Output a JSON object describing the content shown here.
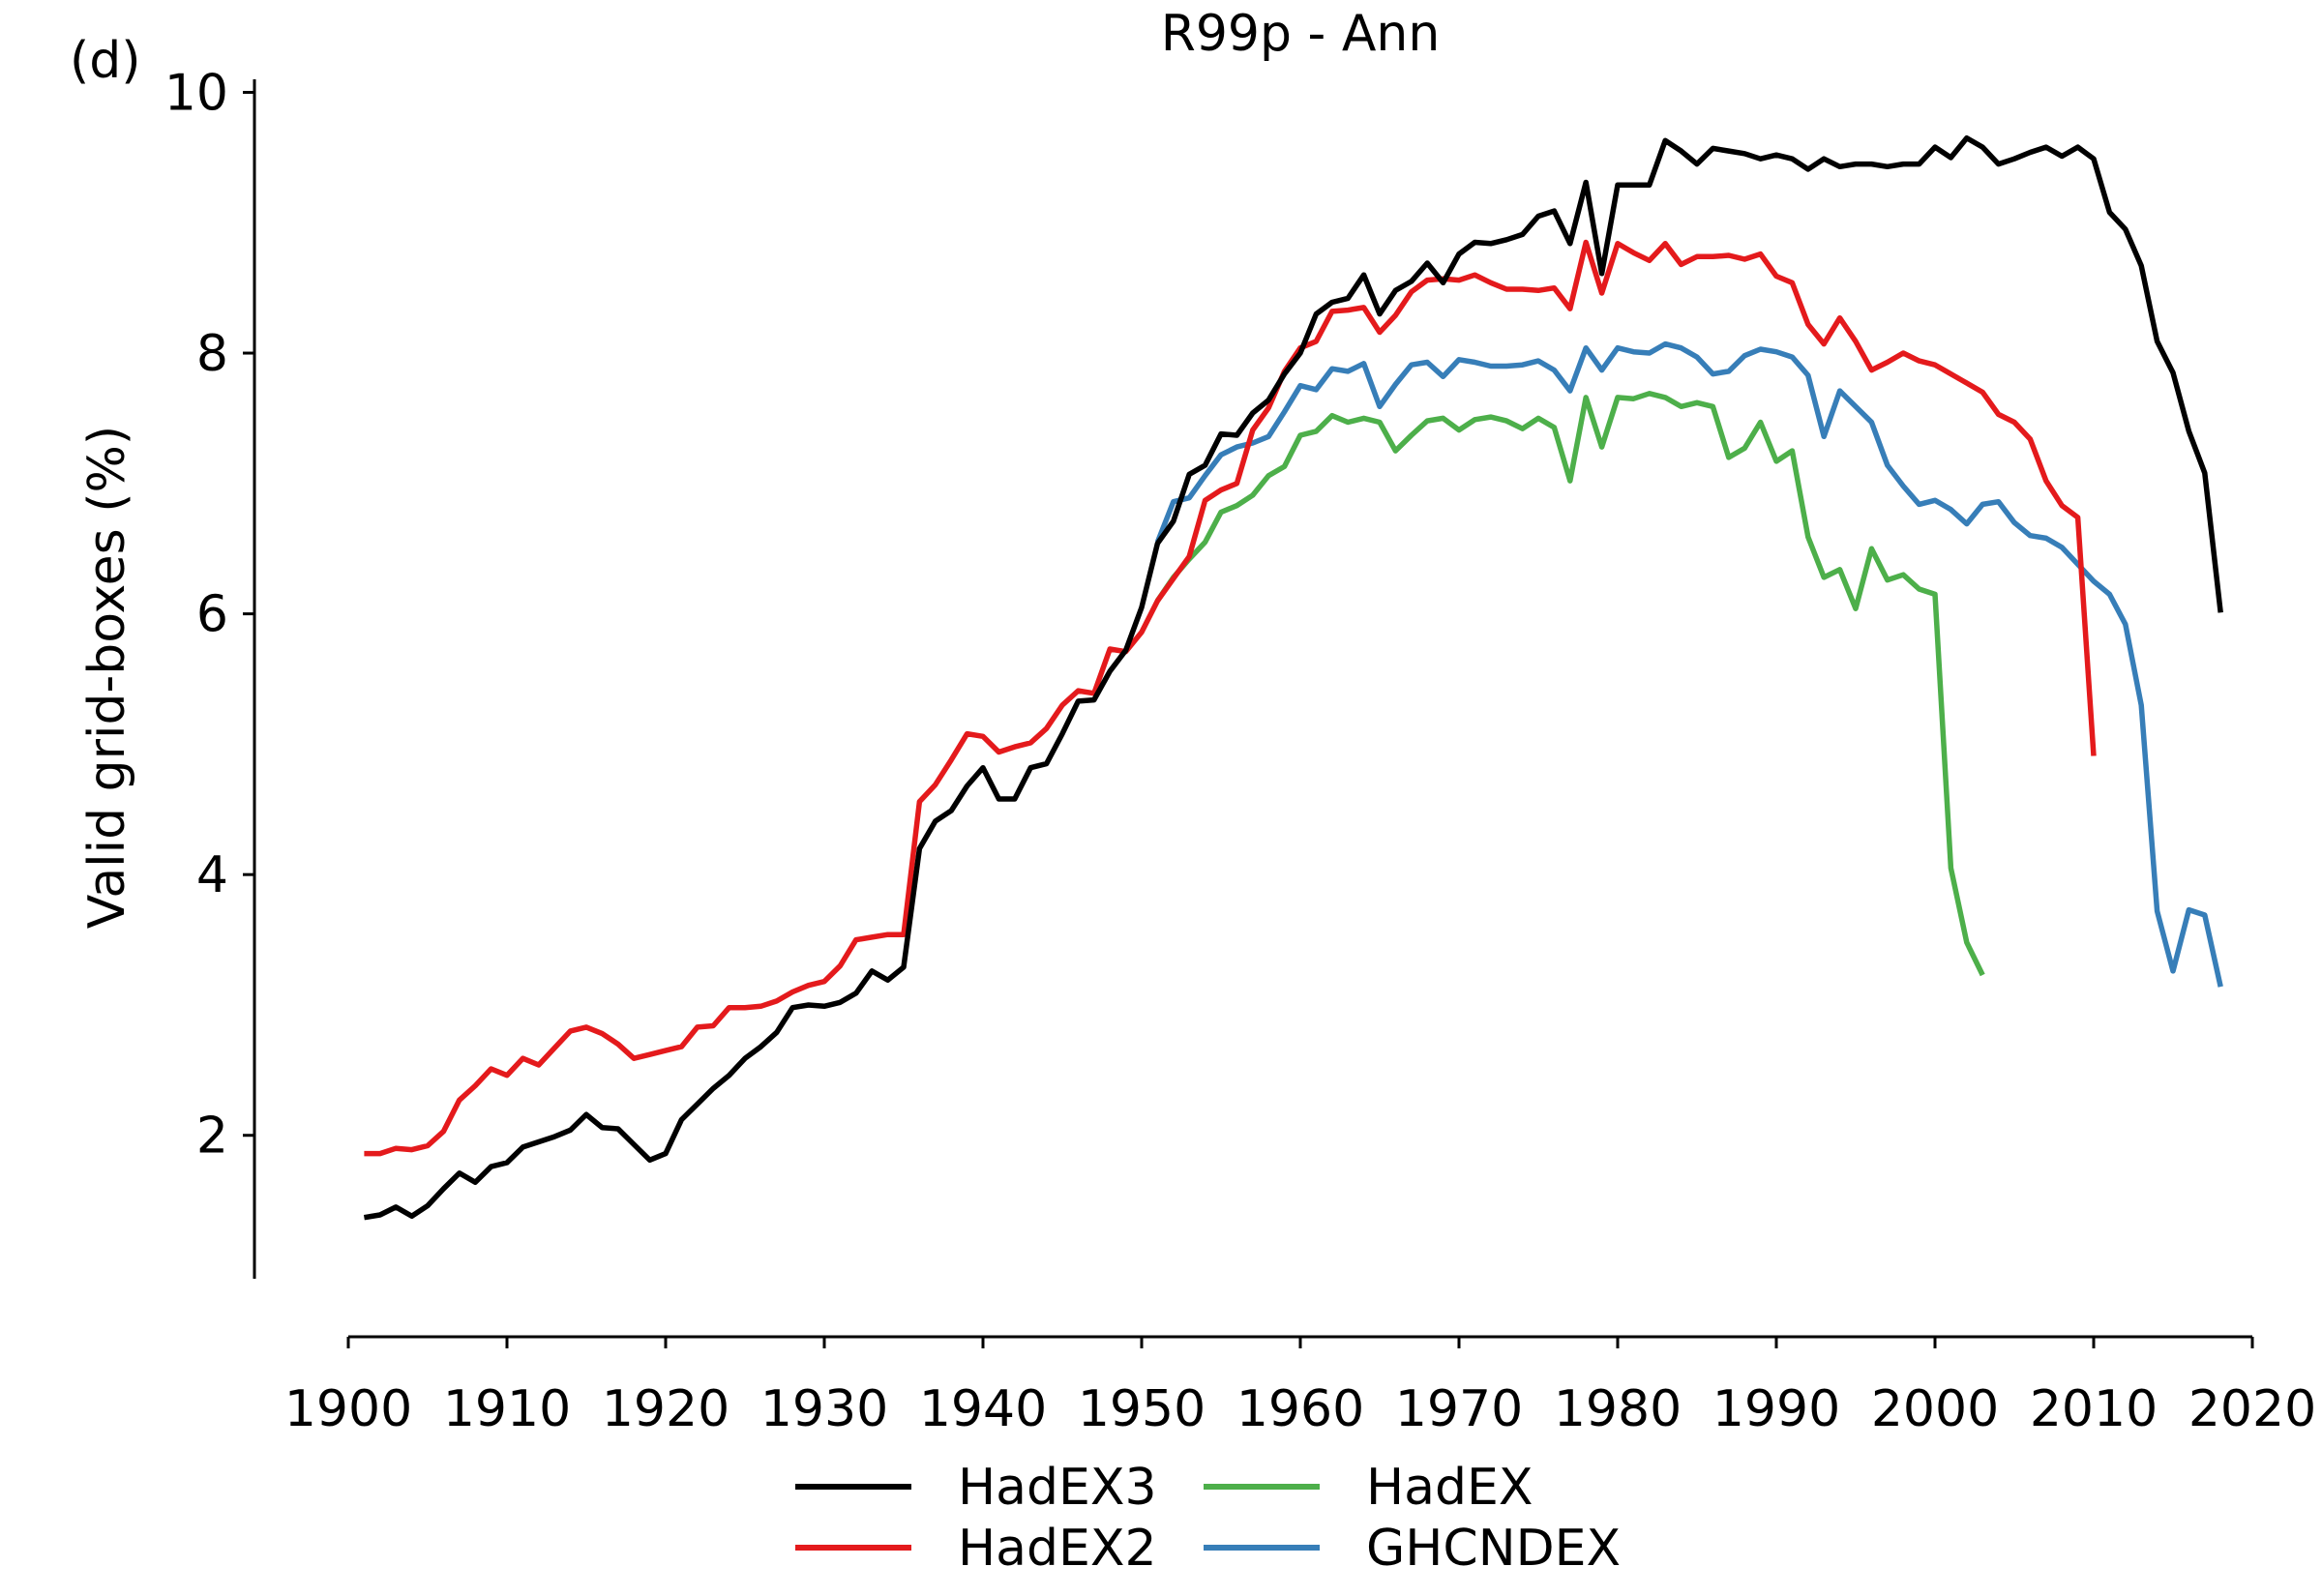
{
  "panel_label": "(d)",
  "chart_data": {
    "type": "line",
    "title": "R99p - Ann",
    "xlabel": "",
    "ylabel": "Valid grid-boxes (%)",
    "xlim": [
      1900,
      2020
    ],
    "ylim": [
      0.9,
      10.1
    ],
    "xticks": [
      1900,
      1910,
      1920,
      1930,
      1940,
      1950,
      1960,
      1970,
      1980,
      1990,
      2000,
      2010,
      2020
    ],
    "yticks": [
      2,
      4,
      6,
      8,
      10
    ],
    "grid": false,
    "legend_position": "bottom-center",
    "series": [
      {
        "name": "HadEX3",
        "color": "#000000",
        "x": [
          1901,
          1902,
          1903,
          1904,
          1905,
          1906,
          1907,
          1908,
          1909,
          1910,
          1911,
          1912,
          1913,
          1914,
          1915,
          1916,
          1917,
          1918,
          1919,
          1920,
          1921,
          1922,
          1923,
          1924,
          1925,
          1926,
          1927,
          1928,
          1929,
          1930,
          1931,
          1932,
          1933,
          1934,
          1935,
          1936,
          1937,
          1938,
          1939,
          1940,
          1941,
          1942,
          1943,
          1944,
          1945,
          1946,
          1947,
          1948,
          1949,
          1950,
          1951,
          1952,
          1953,
          1954,
          1955,
          1956,
          1957,
          1958,
          1959,
          1960,
          1961,
          1962,
          1963,
          1964,
          1965,
          1966,
          1967,
          1968,
          1969,
          1970,
          1971,
          1972,
          1973,
          1974,
          1975,
          1976,
          1977,
          1978,
          1979,
          1980,
          1981,
          1982,
          1983,
          1984,
          1985,
          1986,
          1987,
          1988,
          1989,
          1990,
          1991,
          1992,
          1993,
          1994,
          1995,
          1996,
          1997,
          1998,
          1999,
          2000,
          2001,
          2002,
          2003,
          2004,
          2005,
          2006,
          2007,
          2008,
          2009,
          2010,
          2011,
          2012,
          2013,
          2014,
          2015,
          2016,
          2017,
          2018
        ],
        "y": [
          1.37,
          1.39,
          1.45,
          1.38,
          1.46,
          1.59,
          1.71,
          1.64,
          1.76,
          1.79,
          1.91,
          1.95,
          1.99,
          2.04,
          2.16,
          2.06,
          2.05,
          1.93,
          1.81,
          1.86,
          2.12,
          2.24,
          2.36,
          2.46,
          2.59,
          2.68,
          2.79,
          2.98,
          3.0,
          2.99,
          3.02,
          3.09,
          3.26,
          3.19,
          3.29,
          4.2,
          4.41,
          4.49,
          4.68,
          4.82,
          4.58,
          4.58,
          4.82,
          4.85,
          5.08,
          5.33,
          5.34,
          5.56,
          5.72,
          6.05,
          6.54,
          6.71,
          7.07,
          7.14,
          7.38,
          7.37,
          7.54,
          7.64,
          7.84,
          8.0,
          8.3,
          8.39,
          8.42,
          8.6,
          8.3,
          8.48,
          8.55,
          8.69,
          8.54,
          8.76,
          8.85,
          8.84,
          8.87,
          8.91,
          9.05,
          9.09,
          8.84,
          9.31,
          8.61,
          9.29,
          9.29,
          9.29,
          9.63,
          9.55,
          9.45,
          9.57,
          9.55,
          9.53,
          9.49,
          9.52,
          9.49,
          9.41,
          9.49,
          9.43,
          9.45,
          9.45,
          9.43,
          9.45,
          9.45,
          9.58,
          9.5,
          9.65,
          9.58,
          9.45,
          9.49,
          9.54,
          9.58,
          9.51,
          9.58,
          9.49,
          9.08,
          8.95,
          8.67,
          8.09,
          7.85,
          7.4,
          7.08,
          6.01
        ]
      },
      {
        "name": "HadEX2",
        "color": "#e41a1c",
        "x": [
          1901,
          1902,
          1903,
          1904,
          1905,
          1906,
          1907,
          1908,
          1909,
          1910,
          1911,
          1912,
          1913,
          1914,
          1915,
          1916,
          1917,
          1918,
          1919,
          1920,
          1921,
          1922,
          1923,
          1924,
          1925,
          1926,
          1927,
          1928,
          1929,
          1930,
          1931,
          1932,
          1933,
          1934,
          1935,
          1936,
          1937,
          1938,
          1939,
          1940,
          1941,
          1942,
          1943,
          1944,
          1945,
          1946,
          1947,
          1948,
          1949,
          1950,
          1951,
          1952,
          1953,
          1954,
          1955,
          1956,
          1957,
          1958,
          1959,
          1960,
          1961,
          1962,
          1963,
          1964,
          1965,
          1966,
          1967,
          1968,
          1969,
          1970,
          1971,
          1972,
          1973,
          1974,
          1975,
          1976,
          1977,
          1978,
          1979,
          1980,
          1981,
          1982,
          1983,
          1984,
          1985,
          1986,
          1987,
          1988,
          1989,
          1990,
          1991,
          1992,
          1993,
          1994,
          1995,
          1996,
          1997,
          1998,
          1999,
          2000,
          2001,
          2002,
          2003,
          2004,
          2005,
          2006,
          2007,
          2008,
          2009,
          2010
        ],
        "y": [
          1.86,
          1.86,
          1.9,
          1.89,
          1.92,
          2.03,
          2.27,
          2.38,
          2.51,
          2.46,
          2.59,
          2.54,
          2.67,
          2.8,
          2.83,
          2.78,
          2.7,
          2.59,
          2.62,
          2.65,
          2.68,
          2.83,
          2.84,
          2.98,
          2.98,
          2.99,
          3.03,
          3.1,
          3.15,
          3.18,
          3.3,
          3.5,
          3.52,
          3.54,
          3.54,
          4.56,
          4.69,
          4.88,
          5.08,
          5.06,
          4.94,
          4.98,
          5.01,
          5.12,
          5.3,
          5.41,
          5.39,
          5.73,
          5.71,
          5.86,
          6.1,
          6.27,
          6.44,
          6.87,
          6.95,
          7.0,
          7.41,
          7.58,
          7.86,
          8.04,
          8.09,
          8.32,
          8.33,
          8.35,
          8.16,
          8.29,
          8.47,
          8.56,
          8.57,
          8.56,
          8.6,
          8.54,
          8.49,
          8.49,
          8.48,
          8.5,
          8.34,
          8.85,
          8.46,
          8.84,
          8.77,
          8.71,
          8.84,
          8.68,
          8.74,
          8.74,
          8.75,
          8.72,
          8.76,
          8.59,
          8.54,
          8.22,
          8.07,
          8.27,
          8.09,
          7.87,
          7.93,
          8.0,
          7.94,
          7.91,
          7.84,
          7.77,
          7.7,
          7.53,
          7.47,
          7.34,
          7.02,
          6.83,
          6.74,
          4.91
        ]
      },
      {
        "name": "HadEX",
        "color": "#4daf4a",
        "x": [
          1951,
          1952,
          1953,
          1954,
          1955,
          1956,
          1957,
          1958,
          1959,
          1960,
          1961,
          1962,
          1963,
          1964,
          1965,
          1966,
          1967,
          1968,
          1969,
          1970,
          1971,
          1972,
          1973,
          1974,
          1975,
          1976,
          1977,
          1978,
          1979,
          1980,
          1981,
          1982,
          1983,
          1984,
          1985,
          1986,
          1987,
          1988,
          1989,
          1990,
          1991,
          1992,
          1993,
          1994,
          1995,
          1996,
          1997,
          1998,
          1999,
          2000,
          2001,
          2002,
          2003
        ],
        "y": [
          6.1,
          6.28,
          6.42,
          6.55,
          6.78,
          6.83,
          6.91,
          7.06,
          7.13,
          7.37,
          7.4,
          7.52,
          7.47,
          7.5,
          7.47,
          7.25,
          7.37,
          7.48,
          7.5,
          7.41,
          7.49,
          7.51,
          7.48,
          7.42,
          7.5,
          7.43,
          7.02,
          7.66,
          7.28,
          7.66,
          7.65,
          7.69,
          7.66,
          7.59,
          7.62,
          7.59,
          7.2,
          7.27,
          7.47,
          7.17,
          7.25,
          6.59,
          6.28,
          6.34,
          6.04,
          6.5,
          6.26,
          6.3,
          6.19,
          6.15,
          4.05,
          3.48,
          3.23
        ]
      },
      {
        "name": "GHCNDEX",
        "color": "#377eb8",
        "x": [
          1951,
          1952,
          1953,
          1954,
          1955,
          1956,
          1957,
          1958,
          1959,
          1960,
          1961,
          1962,
          1963,
          1964,
          1965,
          1966,
          1967,
          1968,
          1969,
          1970,
          1971,
          1972,
          1973,
          1974,
          1975,
          1976,
          1977,
          1978,
          1979,
          1980,
          1981,
          1982,
          1983,
          1984,
          1985,
          1986,
          1987,
          1988,
          1989,
          1990,
          1991,
          1992,
          1993,
          1994,
          1995,
          1996,
          1997,
          1998,
          1999,
          2000,
          2001,
          2002,
          2003,
          2004,
          2005,
          2006,
          2007,
          2008,
          2009,
          2010,
          2011,
          2012,
          2013,
          2014,
          2015,
          2016,
          2017,
          2018
        ],
        "y": [
          6.55,
          6.86,
          6.89,
          7.06,
          7.22,
          7.28,
          7.31,
          7.36,
          7.55,
          7.75,
          7.72,
          7.88,
          7.86,
          7.92,
          7.59,
          7.76,
          7.91,
          7.93,
          7.82,
          7.95,
          7.93,
          7.9,
          7.9,
          7.91,
          7.94,
          7.87,
          7.71,
          8.04,
          7.87,
          8.04,
          8.01,
          8.0,
          8.07,
          8.04,
          7.97,
          7.84,
          7.86,
          7.98,
          8.03,
          8.01,
          7.97,
          7.83,
          7.36,
          7.71,
          7.59,
          7.47,
          7.14,
          6.98,
          6.84,
          6.87,
          6.8,
          6.69,
          6.84,
          6.86,
          6.7,
          6.6,
          6.58,
          6.51,
          6.38,
          6.25,
          6.15,
          5.92,
          5.3,
          3.72,
          3.26,
          3.73,
          3.69,
          3.14
        ]
      }
    ]
  }
}
